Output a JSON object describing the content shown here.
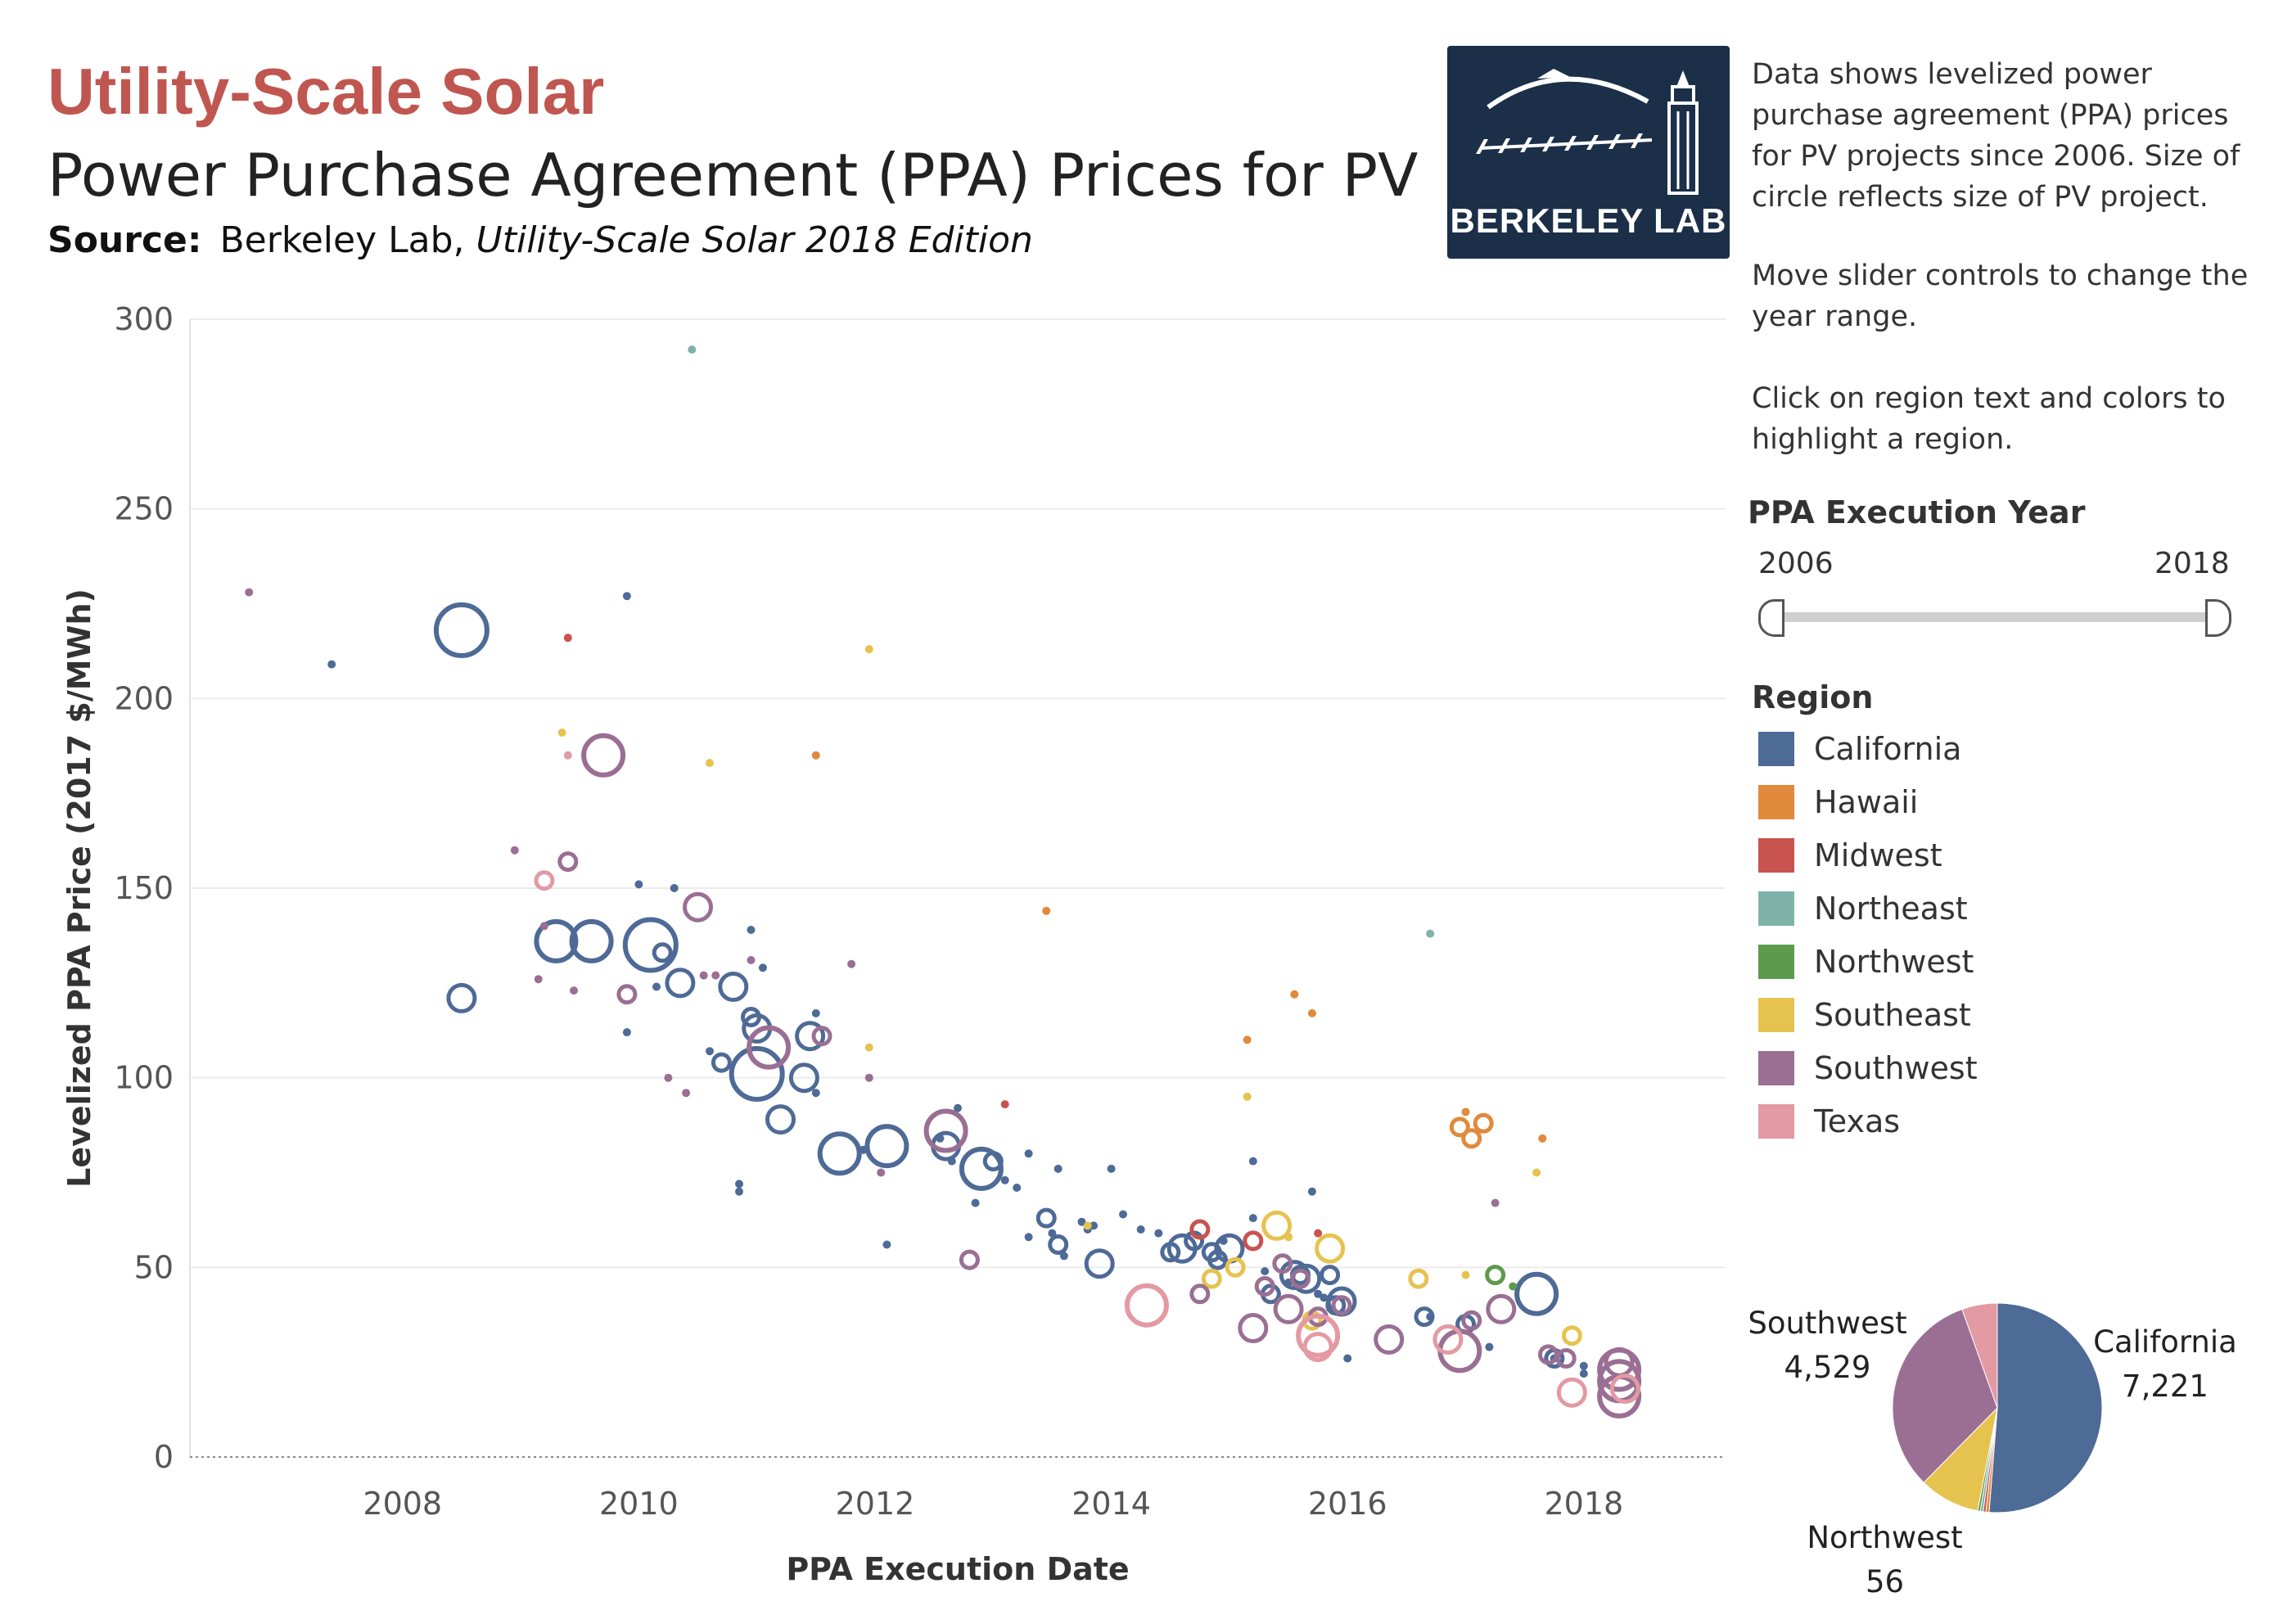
{
  "header": {
    "title": "Utility-Scale Solar",
    "subtitle": "Power Purchase Agreement (PPA) Prices for PV",
    "source_label": "Source:",
    "source_org": "Berkeley Lab,",
    "source_pub": "Utility-Scale Solar 2018 Edition"
  },
  "logo": {
    "text": "BERKELEY LAB",
    "color": "#1c2f49"
  },
  "description": {
    "p1": "Data shows levelized power purchase agreement (PPA) prices for PV projects since 2006. Size of circle reflects size of PV project.",
    "p2": "Move slider controls to change the year range.",
    "p3": "Click on region text and colors to highlight a region."
  },
  "slider": {
    "title": "PPA Execution Year",
    "start": "2006",
    "end": "2018"
  },
  "legend": {
    "title": "Region",
    "items": [
      {
        "label": "California",
        "color": "#4e6a96"
      },
      {
        "label": "Hawaii",
        "color": "#e08a3c"
      },
      {
        "label": "Midwest",
        "color": "#c9534f"
      },
      {
        "label": "Northeast",
        "color": "#7fb3a8"
      },
      {
        "label": "Northwest",
        "color": "#5d9a4c"
      },
      {
        "label": "Southeast",
        "color": "#e6c34f"
      },
      {
        "label": "Southwest",
        "color": "#9a6f93"
      },
      {
        "label": "Texas",
        "color": "#e39aa3"
      }
    ]
  },
  "pie": {
    "labels": [
      {
        "region": "California",
        "value": "7,221"
      },
      {
        "region": "Southwest",
        "value": "4,529"
      },
      {
        "region": "Northwest",
        "value": "56"
      }
    ]
  },
  "chart_data": [
    {
      "type": "scatter",
      "title": "",
      "xlabel": "PPA Execution Date",
      "ylabel": "Levelized PPA Price (2017 $/MWh)",
      "xlim": [
        2006.2,
        2019.2
      ],
      "ylim": [
        0,
        300
      ],
      "x_ticks": [
        "2008",
        "2010",
        "2012",
        "2014",
        "2016",
        "2018"
      ],
      "y_ticks": [
        "0",
        "50",
        "100",
        "150",
        "200",
        "250",
        "300"
      ],
      "grid": true,
      "size_encodes": "PV project size",
      "series": [
        {
          "name": "California",
          "points": [
            [
              2007.4,
              209,
              1
            ],
            [
              2008.5,
              218,
              5
            ],
            [
              2008.5,
              121,
              3
            ],
            [
              2009.3,
              136,
              4
            ],
            [
              2009.6,
              136,
              4
            ],
            [
              2009.9,
              112,
              1
            ],
            [
              2009.9,
              227,
              1
            ],
            [
              2010.0,
              151,
              1
            ],
            [
              2010.1,
              135,
              5
            ],
            [
              2010.2,
              133,
              2
            ],
            [
              2010.15,
              124,
              1
            ],
            [
              2010.3,
              150,
              1
            ],
            [
              2010.35,
              125,
              3
            ],
            [
              2010.6,
              107,
              1
            ],
            [
              2010.7,
              104,
              2
            ],
            [
              2010.8,
              124,
              3
            ],
            [
              2010.85,
              72,
              1
            ],
            [
              2010.85,
              70,
              1
            ],
            [
              2010.95,
              116,
              2
            ],
            [
              2010.95,
              139,
              1
            ],
            [
              2011.0,
              101,
              5
            ],
            [
              2011.0,
              113,
              3
            ],
            [
              2011.05,
              129,
              1
            ],
            [
              2011.2,
              89,
              3
            ],
            [
              2011.4,
              100,
              3
            ],
            [
              2011.45,
              111,
              3
            ],
            [
              2011.5,
              117,
              1
            ],
            [
              2011.5,
              96,
              1
            ],
            [
              2011.7,
              80,
              4
            ],
            [
              2011.9,
              81,
              1
            ],
            [
              2012.1,
              82,
              4
            ],
            [
              2012.1,
              56,
              1
            ],
            [
              2012.55,
              84,
              1
            ],
            [
              2012.6,
              82,
              3
            ],
            [
              2012.65,
              78,
              1
            ],
            [
              2012.7,
              92,
              1
            ],
            [
              2012.85,
              67,
              1
            ],
            [
              2012.9,
              76,
              4
            ],
            [
              2013.0,
              78,
              2
            ],
            [
              2013.1,
              73,
              1
            ],
            [
              2013.2,
              71,
              1
            ],
            [
              2013.3,
              80,
              1
            ],
            [
              2013.3,
              58,
              1
            ],
            [
              2013.45,
              63,
              2
            ],
            [
              2013.5,
              59,
              1
            ],
            [
              2013.55,
              56,
              2
            ],
            [
              2013.6,
              53,
              1
            ],
            [
              2013.55,
              76,
              1
            ],
            [
              2013.75,
              62,
              1
            ],
            [
              2013.8,
              60,
              1
            ],
            [
              2013.85,
              61,
              1
            ],
            [
              2013.9,
              51,
              3
            ],
            [
              2014.0,
              76,
              1
            ],
            [
              2014.1,
              64,
              1
            ],
            [
              2014.25,
              60,
              1
            ],
            [
              2014.4,
              59,
              1
            ],
            [
              2014.5,
              54,
              2
            ],
            [
              2014.6,
              55,
              3
            ],
            [
              2014.7,
              57,
              2
            ],
            [
              2014.85,
              54,
              2
            ],
            [
              2014.9,
              52,
              2
            ],
            [
              2014.95,
              57,
              1
            ],
            [
              2015.0,
              55,
              3
            ],
            [
              2015.2,
              78,
              1
            ],
            [
              2015.2,
              63,
              1
            ],
            [
              2015.3,
              49,
              1
            ],
            [
              2015.35,
              43,
              2
            ],
            [
              2015.5,
              46,
              1
            ],
            [
              2015.55,
              48,
              3
            ],
            [
              2015.6,
              48,
              2
            ],
            [
              2015.65,
              47,
              3
            ],
            [
              2015.7,
              70,
              1
            ],
            [
              2015.75,
              43,
              1
            ],
            [
              2015.8,
              42,
              1
            ],
            [
              2015.85,
              48,
              2
            ],
            [
              2015.9,
              40,
              2
            ],
            [
              2015.95,
              41,
              3
            ],
            [
              2016.0,
              26,
              1
            ],
            [
              2016.65,
              37,
              2
            ],
            [
              2016.7,
              37,
              1
            ],
            [
              2017.0,
              35,
              2
            ],
            [
              2017.2,
              29,
              1
            ],
            [
              2017.6,
              43,
              4
            ],
            [
              2017.75,
              26,
              2
            ],
            [
              2017.75,
              26,
              1
            ],
            [
              2018.0,
              22,
              1
            ],
            [
              2018.0,
              24,
              1
            ]
          ]
        },
        {
          "name": "Hawaii",
          "points": [
            [
              2011.5,
              185,
              1
            ],
            [
              2013.45,
              144,
              1
            ],
            [
              2015.15,
              110,
              1
            ],
            [
              2015.55,
              122,
              1
            ],
            [
              2015.7,
              117,
              1
            ],
            [
              2016.95,
              87,
              2
            ],
            [
              2017.0,
              91,
              1
            ],
            [
              2017.05,
              84,
              2
            ],
            [
              2017.15,
              88,
              2
            ],
            [
              2017.65,
              84,
              1
            ]
          ]
        },
        {
          "name": "Midwest",
          "points": [
            [
              2009.4,
              216,
              1
            ],
            [
              2013.1,
              93,
              1
            ],
            [
              2014.75,
              60,
              2
            ],
            [
              2015.2,
              57,
              2
            ],
            [
              2015.75,
              59,
              1
            ]
          ]
        },
        {
          "name": "Northeast",
          "points": [
            [
              2010.45,
              292,
              1
            ],
            [
              2016.7,
              138,
              1
            ]
          ]
        },
        {
          "name": "Northwest",
          "points": [
            [
              2017.25,
              48,
              2
            ],
            [
              2017.4,
              45,
              1
            ]
          ]
        },
        {
          "name": "Southeast",
          "points": [
            [
              2009.35,
              191,
              1
            ],
            [
              2010.6,
              183,
              1
            ],
            [
              2011.95,
              213,
              1
            ],
            [
              2011.95,
              108,
              1
            ],
            [
              2013.8,
              61,
              1
            ],
            [
              2014.85,
              47,
              2
            ],
            [
              2015.05,
              50,
              2
            ],
            [
              2015.15,
              95,
              1
            ],
            [
              2015.4,
              61,
              3
            ],
            [
              2015.5,
              58,
              1
            ],
            [
              2015.7,
              36,
              2
            ],
            [
              2015.85,
              55,
              3
            ],
            [
              2016.6,
              47,
              2
            ],
            [
              2017.0,
              48,
              1
            ],
            [
              2017.6,
              75,
              1
            ],
            [
              2017.9,
              32,
              2
            ]
          ]
        },
        {
          "name": "Southwest",
          "points": [
            [
              2006.7,
              228,
              1
            ],
            [
              2008.95,
              160,
              1
            ],
            [
              2009.15,
              126,
              1
            ],
            [
              2009.2,
              140,
              1
            ],
            [
              2009.4,
              157,
              2
            ],
            [
              2009.45,
              123,
              1
            ],
            [
              2009.7,
              185,
              4
            ],
            [
              2009.9,
              122,
              2
            ],
            [
              2010.25,
              100,
              1
            ],
            [
              2010.4,
              96,
              1
            ],
            [
              2010.5,
              145,
              3
            ],
            [
              2010.55,
              127,
              1
            ],
            [
              2010.65,
              127,
              1
            ],
            [
              2010.95,
              131,
              1
            ],
            [
              2011.1,
              108,
              4
            ],
            [
              2011.55,
              111,
              2
            ],
            [
              2011.8,
              130,
              1
            ],
            [
              2011.95,
              100,
              1
            ],
            [
              2012.05,
              75,
              1
            ],
            [
              2012.6,
              86,
              4
            ],
            [
              2012.8,
              52,
              2
            ],
            [
              2014.75,
              43,
              2
            ],
            [
              2015.2,
              34,
              3
            ],
            [
              2015.3,
              45,
              2
            ],
            [
              2015.45,
              51,
              2
            ],
            [
              2015.5,
              39,
              3
            ],
            [
              2015.6,
              47,
              2
            ],
            [
              2015.75,
              37,
              2
            ],
            [
              2015.95,
              40,
              2
            ],
            [
              2016.35,
              31,
              3
            ],
            [
              2016.95,
              28,
              4
            ],
            [
              2017.05,
              36,
              2
            ],
            [
              2017.25,
              67,
              1
            ],
            [
              2017.3,
              39,
              3
            ],
            [
              2017.7,
              27,
              2
            ],
            [
              2017.85,
              26,
              2
            ],
            [
              2018.3,
              25,
              3
            ],
            [
              2018.3,
              23,
              4
            ],
            [
              2018.3,
              20,
              4
            ],
            [
              2018.3,
              16,
              4
            ]
          ]
        },
        {
          "name": "Texas",
          "points": [
            [
              2009.4,
              185,
              1
            ],
            [
              2009.2,
              152,
              2
            ],
            [
              2014.3,
              40,
              4
            ],
            [
              2015.75,
              32,
              4
            ],
            [
              2015.75,
              29,
              3
            ],
            [
              2016.85,
              31,
              3
            ],
            [
              2017.9,
              17,
              3
            ],
            [
              2018.35,
              18,
              3
            ]
          ]
        }
      ]
    },
    {
      "type": "pie",
      "slices": [
        {
          "name": "California",
          "value": 7221
        },
        {
          "name": "Hawaii",
          "value": 69
        },
        {
          "name": "Midwest",
          "value": 60
        },
        {
          "name": "Northeast",
          "value": 62
        },
        {
          "name": "Northwest",
          "value": 56
        },
        {
          "name": "Southeast",
          "value": 1320
        },
        {
          "name": "Southwest",
          "value": 4529
        },
        {
          "name": "Texas",
          "value": 770
        }
      ]
    }
  ]
}
